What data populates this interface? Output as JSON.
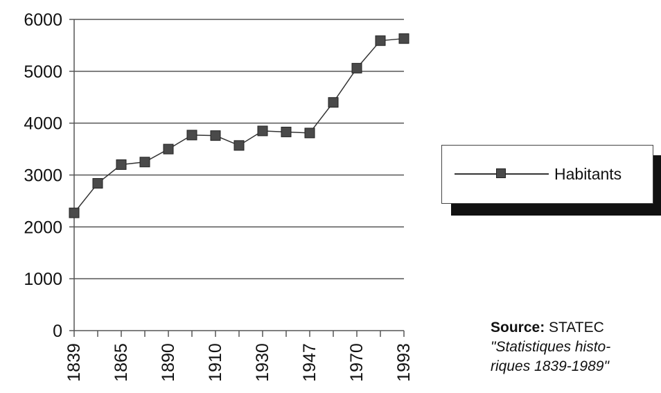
{
  "chart_data": {
    "type": "line",
    "title": "",
    "xlabel": "",
    "ylabel": "",
    "ylim": [
      0,
      6000
    ],
    "y_ticks": [
      0,
      1000,
      2000,
      3000,
      4000,
      5000,
      6000
    ],
    "y_tick_labels": [
      "0",
      "1000",
      "2000",
      "3000",
      "4000",
      "5000",
      "6000"
    ],
    "x_tick_labels": [
      "1839",
      "1865",
      "1890",
      "1910",
      "1930",
      "1947",
      "1970",
      "1993"
    ],
    "grid": true,
    "legend_position": "right",
    "series": [
      {
        "name": "Habitants",
        "values": [
          2270,
          2840,
          3200,
          3250,
          3500,
          3770,
          3760,
          3570,
          3850,
          3830,
          3810,
          4400,
          5060,
          5590,
          5630
        ]
      }
    ]
  },
  "legend": {
    "label": "Habitants"
  },
  "source": {
    "key": "Source:",
    "name": "STATEC",
    "note_line1": "\"Statistiques histo-",
    "note_line2": "riques 1839-1989\""
  },
  "colors": {
    "line": "#333333",
    "marker": "#4a4a4a",
    "grid": "#555555",
    "shadow": "#111111"
  }
}
